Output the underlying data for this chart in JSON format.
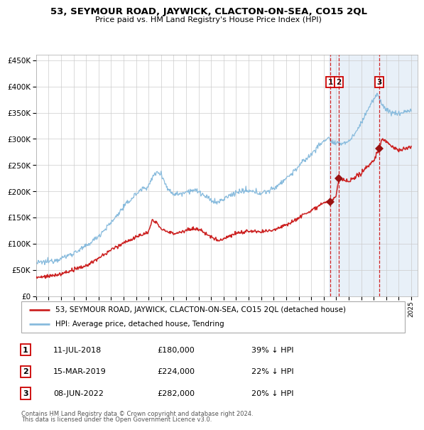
{
  "title": "53, SEYMOUR ROAD, JAYWICK, CLACTON-ON-SEA, CO15 2QL",
  "subtitle": "Price paid vs. HM Land Registry's House Price Index (HPI)",
  "hpi_color": "#88bbdd",
  "price_color": "#cc2222",
  "marker_color": "#991111",
  "background_plot": "#e8f0f8",
  "transactions": [
    {
      "num": 1,
      "date_str": "11-JUL-2018",
      "date_x": 2018.53,
      "price": 180000
    },
    {
      "num": 2,
      "date_str": "15-MAR-2019",
      "date_x": 2019.21,
      "price": 224000
    },
    {
      "num": 3,
      "date_str": "08-JUN-2022",
      "date_x": 2022.44,
      "price": 282000
    }
  ],
  "legend_line1": "53, SEYMOUR ROAD, JAYWICK, CLACTON-ON-SEA, CO15 2QL (detached house)",
  "legend_line2": "HPI: Average price, detached house, Tendring",
  "footer1": "Contains HM Land Registry data © Crown copyright and database right 2024.",
  "footer2": "This data is licensed under the Open Government Licence v3.0.",
  "table_rows": [
    [
      "1",
      "11-JUL-2018",
      "£180,000",
      "39% ↓ HPI"
    ],
    [
      "2",
      "15-MAR-2019",
      "£224,000",
      "22% ↓ HPI"
    ],
    [
      "3",
      "08-JUN-2022",
      "£282,000",
      "20% ↓ HPI"
    ]
  ],
  "ylim": [
    0,
    460000
  ],
  "xlim_start": 1995.0,
  "xlim_end": 2025.5,
  "highlight_start": 2018.4,
  "highlight_end": 2025.5
}
